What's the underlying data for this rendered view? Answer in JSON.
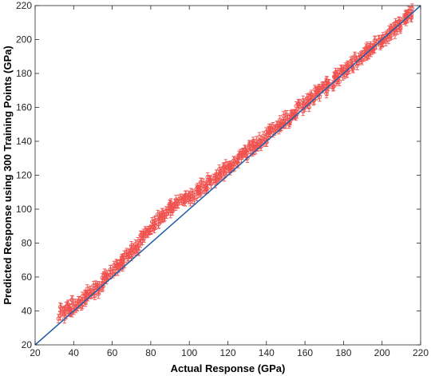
{
  "chart_data": {
    "type": "scatter",
    "title": "",
    "xlabel": "Actual Response (GPa)",
    "ylabel": "Predicted Response using 300 Training Points (GPa)",
    "xlim": [
      20,
      220
    ],
    "ylim": [
      20,
      220
    ],
    "x_ticks": [
      20,
      40,
      60,
      80,
      100,
      120,
      140,
      160,
      180,
      200,
      220
    ],
    "y_ticks": [
      20,
      40,
      60,
      80,
      100,
      120,
      140,
      160,
      180,
      200,
      220
    ],
    "grid": false,
    "legend": "none",
    "series": [
      {
        "kind": "scatter-errorbar",
        "color": "#f0524f",
        "error_bar": 2.5,
        "points": [
          [
            33,
            37
          ],
          [
            34,
            40
          ],
          [
            35,
            42
          ],
          [
            36,
            38
          ],
          [
            37,
            43
          ],
          [
            38,
            41
          ],
          [
            39,
            40
          ],
          [
            40,
            44
          ],
          [
            41,
            42
          ],
          [
            42,
            45
          ],
          [
            43,
            44
          ],
          [
            44,
            46
          ],
          [
            45,
            47
          ],
          [
            46,
            48
          ],
          [
            47,
            47
          ],
          [
            48,
            50
          ],
          [
            49,
            50
          ],
          [
            50,
            52
          ],
          [
            51,
            53
          ],
          [
            52,
            52
          ],
          [
            53,
            55
          ],
          [
            54,
            56
          ],
          [
            55,
            57
          ],
          [
            56,
            58
          ],
          [
            57,
            60
          ],
          [
            58,
            61
          ],
          [
            59,
            62
          ],
          [
            60,
            62
          ],
          [
            61,
            64
          ],
          [
            62,
            65
          ],
          [
            63,
            66
          ],
          [
            64,
            68
          ],
          [
            65,
            68
          ],
          [
            66,
            70
          ],
          [
            67,
            72
          ],
          [
            68,
            72
          ],
          [
            69,
            74
          ],
          [
            70,
            76
          ],
          [
            71,
            77
          ],
          [
            72,
            78
          ],
          [
            73,
            78
          ],
          [
            74,
            80
          ],
          [
            75,
            82
          ],
          [
            76,
            83
          ],
          [
            77,
            85
          ],
          [
            78,
            86
          ],
          [
            79,
            87
          ],
          [
            80,
            88
          ],
          [
            81,
            90
          ],
          [
            82,
            91
          ],
          [
            83,
            92
          ],
          [
            84,
            94
          ],
          [
            85,
            96
          ],
          [
            86,
            97
          ],
          [
            87,
            98
          ],
          [
            88,
            98
          ],
          [
            89,
            100
          ],
          [
            90,
            100
          ],
          [
            91,
            101
          ],
          [
            92,
            102
          ],
          [
            93,
            103
          ],
          [
            94,
            104
          ],
          [
            95,
            104
          ],
          [
            96,
            105
          ],
          [
            97,
            106
          ],
          [
            98,
            106
          ],
          [
            99,
            107
          ],
          [
            100,
            107
          ],
          [
            101,
            107
          ],
          [
            102,
            108
          ],
          [
            103,
            109
          ],
          [
            104,
            110
          ],
          [
            105,
            111
          ],
          [
            106,
            112
          ],
          [
            107,
            113
          ],
          [
            108,
            114
          ],
          [
            109,
            115
          ],
          [
            110,
            116
          ],
          [
            111,
            117
          ],
          [
            112,
            117
          ],
          [
            113,
            118
          ],
          [
            114,
            119
          ],
          [
            115,
            120
          ],
          [
            116,
            121
          ],
          [
            117,
            122
          ],
          [
            118,
            123
          ],
          [
            119,
            124
          ],
          [
            120,
            125
          ],
          [
            121,
            126
          ],
          [
            122,
            126
          ],
          [
            123,
            127
          ],
          [
            124,
            128
          ],
          [
            125,
            129
          ],
          [
            126,
            130
          ],
          [
            127,
            131
          ],
          [
            128,
            132
          ],
          [
            129,
            133
          ],
          [
            130,
            134
          ],
          [
            131,
            135
          ],
          [
            132,
            136
          ],
          [
            133,
            137
          ],
          [
            134,
            138
          ],
          [
            135,
            138
          ],
          [
            136,
            139
          ],
          [
            137,
            140
          ],
          [
            138,
            141
          ],
          [
            139,
            142
          ],
          [
            140,
            143
          ],
          [
            141,
            144
          ],
          [
            142,
            145
          ],
          [
            143,
            146
          ],
          [
            144,
            147
          ],
          [
            145,
            148
          ],
          [
            146,
            149
          ],
          [
            147,
            150
          ],
          [
            148,
            151
          ],
          [
            149,
            152
          ],
          [
            150,
            153
          ],
          [
            151,
            153
          ],
          [
            152,
            154
          ],
          [
            153,
            155
          ],
          [
            154,
            156
          ],
          [
            155,
            157
          ],
          [
            156,
            158
          ],
          [
            157,
            159
          ],
          [
            158,
            160
          ],
          [
            159,
            161
          ],
          [
            160,
            162
          ],
          [
            161,
            163
          ],
          [
            162,
            164
          ],
          [
            163,
            165
          ],
          [
            164,
            166
          ],
          [
            165,
            167
          ],
          [
            166,
            168
          ],
          [
            167,
            169
          ],
          [
            168,
            169
          ],
          [
            169,
            170
          ],
          [
            170,
            171
          ],
          [
            171,
            172
          ],
          [
            172,
            173
          ],
          [
            173,
            174
          ],
          [
            174,
            175
          ],
          [
            175,
            176
          ],
          [
            176,
            177
          ],
          [
            177,
            178
          ],
          [
            178,
            179
          ],
          [
            179,
            180
          ],
          [
            180,
            181
          ],
          [
            181,
            182
          ],
          [
            182,
            183
          ],
          [
            183,
            184
          ],
          [
            184,
            185
          ],
          [
            185,
            186
          ],
          [
            186,
            187
          ],
          [
            187,
            188
          ],
          [
            188,
            189
          ],
          [
            189,
            190
          ],
          [
            190,
            191
          ],
          [
            191,
            192
          ],
          [
            192,
            193
          ],
          [
            193,
            194
          ],
          [
            194,
            195
          ],
          [
            195,
            196
          ],
          [
            196,
            197
          ],
          [
            197,
            197
          ],
          [
            198,
            198
          ],
          [
            199,
            199
          ],
          [
            200,
            200
          ],
          [
            201,
            201
          ],
          [
            202,
            202
          ],
          [
            203,
            203
          ],
          [
            204,
            204
          ],
          [
            205,
            205
          ],
          [
            206,
            206
          ],
          [
            207,
            207
          ],
          [
            208,
            208
          ],
          [
            209,
            209
          ],
          [
            210,
            210
          ],
          [
            211,
            211
          ],
          [
            212,
            212
          ],
          [
            213,
            213
          ],
          [
            214,
            214
          ],
          [
            215,
            215
          ],
          [
            216,
            216
          ]
        ]
      },
      {
        "kind": "line",
        "color": "#1f5ea8",
        "x": [
          20,
          220
        ],
        "y": [
          20,
          220
        ]
      }
    ]
  }
}
